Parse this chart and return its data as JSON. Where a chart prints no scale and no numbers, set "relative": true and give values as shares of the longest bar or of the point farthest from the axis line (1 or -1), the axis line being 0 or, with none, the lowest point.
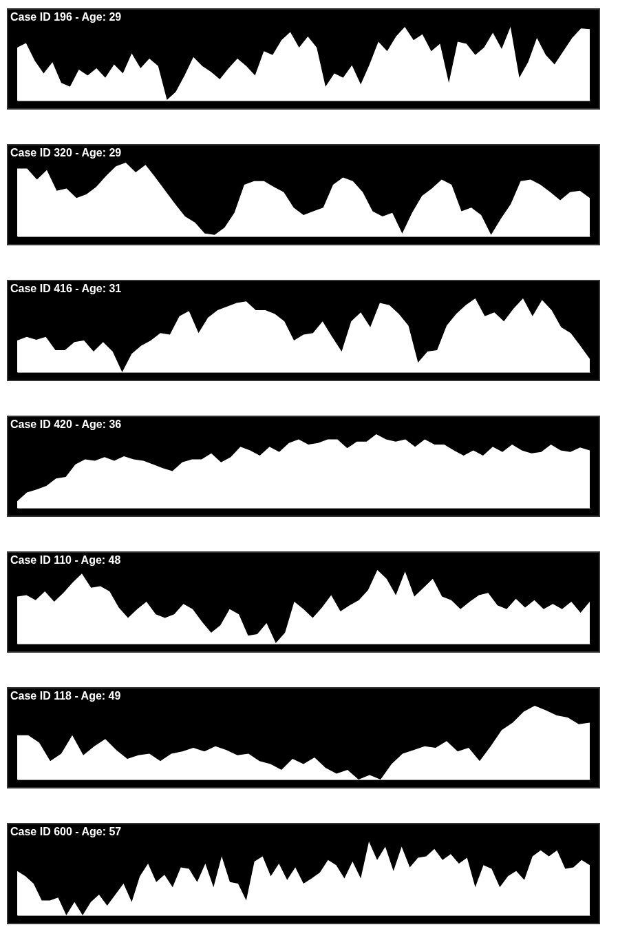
{
  "chart_data": [
    {
      "type": "area",
      "title": "Case ID 196 - Age: 29",
      "relative": true,
      "categories": [
        null,
        null,
        null,
        null,
        null,
        null,
        null,
        null,
        null,
        null,
        null,
        null,
        null,
        null,
        null,
        null,
        null,
        null,
        null,
        null,
        null,
        null,
        null,
        null,
        null,
        null,
        null,
        null,
        null,
        null,
        null,
        null,
        null,
        null,
        null,
        null,
        null,
        null,
        null,
        null,
        null,
        null,
        null,
        null,
        null,
        null,
        null,
        null,
        null,
        null,
        null,
        null,
        null,
        null,
        null,
        null,
        null,
        null,
        null,
        null,
        null,
        null,
        null,
        null,
        null,
        null
      ],
      "series": [
        {
          "color": "#ffffff",
          "values": [
            0.72,
            0.78,
            0.54,
            0.37,
            0.52,
            0.24,
            0.19,
            0.42,
            0.34,
            0.44,
            0.31,
            0.49,
            0.37,
            0.64,
            0.44,
            0.57,
            0.47,
            0.01,
            0.12,
            0.34,
            0.59,
            0.47,
            0.39,
            0.29,
            0.44,
            0.57,
            0.47,
            0.34,
            0.67,
            0.62,
            0.82,
            0.93,
            0.72,
            0.87,
            0.72,
            0.19,
            0.37,
            0.31,
            0.48,
            0.22,
            0.49,
            0.8,
            0.67,
            0.87,
            1,
            0.82,
            0.9,
            0.67,
            0.77,
            0.24,
            0.8,
            0.77,
            0.62,
            0.72,
            0.92,
            0.7,
            1,
            0.31,
            0.52,
            0.85,
            0.62,
            0.49,
            0.67,
            0.85,
            0.98,
            0.97
          ]
        }
      ]
    },
    {
      "type": "area",
      "title": "Case ID 320 - Age: 29",
      "relative": true,
      "categories": [
        null,
        null,
        null,
        null,
        null,
        null,
        null,
        null,
        null,
        null,
        null,
        null,
        null,
        null,
        null,
        null,
        null,
        null,
        null,
        null,
        null,
        null,
        null,
        null,
        null,
        null,
        null,
        null,
        null,
        null,
        null,
        null,
        null,
        null,
        null,
        null,
        null,
        null,
        null,
        null,
        null,
        null,
        null,
        null,
        null,
        null,
        null,
        null,
        null,
        null,
        null,
        null,
        null,
        null,
        null,
        null,
        null,
        null,
        null
      ],
      "series": [
        {
          "color": "#ffffff",
          "values": [
            0.92,
            0.92,
            0.77,
            0.9,
            0.62,
            0.65,
            0.52,
            0.57,
            0.67,
            0.82,
            0.95,
            1,
            0.87,
            0.97,
            0.8,
            0.62,
            0.44,
            0.27,
            0.19,
            0.04,
            0.02,
            0.12,
            0.32,
            0.7,
            0.75,
            0.75,
            0.67,
            0.6,
            0.39,
            0.29,
            0.34,
            0.39,
            0.7,
            0.8,
            0.75,
            0.6,
            0.34,
            0.27,
            0.32,
            0.04,
            0.32,
            0.55,
            0.65,
            0.77,
            0.7,
            0.34,
            0.39,
            0.29,
            0.02,
            0.24,
            0.44,
            0.75,
            0.77,
            0.7,
            0.6,
            0.49,
            0.6,
            0.62,
            0.52
          ]
        }
      ]
    },
    {
      "type": "area",
      "title": "Case ID 416 - Age: 31",
      "relative": true,
      "categories": [
        null,
        null,
        null,
        null,
        null,
        null,
        null,
        null,
        null,
        null,
        null,
        null,
        null,
        null,
        null,
        null,
        null,
        null,
        null,
        null,
        null,
        null,
        null,
        null,
        null,
        null,
        null,
        null,
        null,
        null,
        null,
        null,
        null,
        null,
        null,
        null,
        null,
        null,
        null,
        null,
        null,
        null,
        null,
        null,
        null,
        null,
        null,
        null,
        null,
        null,
        null,
        null,
        null,
        null,
        null,
        null,
        null,
        null,
        null,
        null,
        null
      ],
      "series": [
        {
          "color": "#ffffff",
          "values": [
            0.43,
            0.48,
            0.44,
            0.48,
            0.3,
            0.3,
            0.41,
            0.43,
            0.28,
            0.41,
            0.28,
            0,
            0.25,
            0.36,
            0.43,
            0.53,
            0.51,
            0.76,
            0.83,
            0.53,
            0.74,
            0.84,
            0.89,
            0.94,
            0.96,
            0.84,
            0.84,
            0.79,
            0.69,
            0.43,
            0.51,
            0.53,
            0.69,
            0.48,
            0.28,
            0.69,
            0.81,
            0.61,
            0.94,
            0.91,
            0.79,
            0.63,
            0.13,
            0.28,
            0.3,
            0.63,
            0.79,
            0.91,
            1,
            0.76,
            0.81,
            0.69,
            0.86,
            1,
            0.76,
            0.98,
            0.84,
            0.61,
            0.53,
            0.36,
            0.18
          ]
        }
      ]
    },
    {
      "type": "area",
      "title": "Case ID 420 - Age: 36",
      "relative": true,
      "categories": [
        null,
        null,
        null,
        null,
        null,
        null,
        null,
        null,
        null,
        null,
        null,
        null,
        null,
        null,
        null,
        null,
        null,
        null,
        null,
        null,
        null,
        null,
        null,
        null,
        null,
        null,
        null,
        null,
        null,
        null,
        null,
        null,
        null,
        null,
        null,
        null,
        null,
        null,
        null,
        null,
        null,
        null,
        null,
        null,
        null,
        null,
        null,
        null,
        null,
        null,
        null,
        null,
        null,
        null,
        null,
        null,
        null,
        null,
        null,
        null
      ],
      "series": [
        {
          "color": "#ffffff",
          "values": [
            0.09,
            0.21,
            0.25,
            0.3,
            0.4,
            0.42,
            0.59,
            0.66,
            0.64,
            0.69,
            0.64,
            0.7,
            0.66,
            0.64,
            0.59,
            0.54,
            0.5,
            0.62,
            0.66,
            0.66,
            0.74,
            0.62,
            0.69,
            0.83,
            0.78,
            0.71,
            0.83,
            0.76,
            0.88,
            0.93,
            0.86,
            0.88,
            0.93,
            0.93,
            0.81,
            0.9,
            0.9,
            1,
            0.93,
            0.9,
            0.93,
            0.83,
            0.93,
            0.86,
            0.86,
            0.78,
            0.71,
            0.78,
            0.71,
            0.83,
            0.76,
            0.86,
            0.78,
            0.74,
            0.76,
            0.86,
            0.78,
            0.76,
            0.82,
            0.78
          ]
        }
      ]
    },
    {
      "type": "area",
      "title": "Case ID 110 - Age: 48",
      "relative": true,
      "categories": [
        null,
        null,
        null,
        null,
        null,
        null,
        null,
        null,
        null,
        null,
        null,
        null,
        null,
        null,
        null,
        null,
        null,
        null,
        null,
        null,
        null,
        null,
        null,
        null,
        null,
        null,
        null,
        null,
        null,
        null,
        null,
        null,
        null,
        null,
        null,
        null,
        null,
        null,
        null,
        null,
        null,
        null,
        null,
        null,
        null,
        null,
        null,
        null,
        null,
        null,
        null,
        null,
        null,
        null,
        null,
        null,
        null,
        null,
        null,
        null,
        null,
        null,
        null
      ],
      "series": [
        {
          "color": "#ffffff",
          "values": [
            0.64,
            0.66,
            0.59,
            0.71,
            0.57,
            0.69,
            0.83,
            0.95,
            0.76,
            0.78,
            0.71,
            0.49,
            0.35,
            0.47,
            0.57,
            0.4,
            0.35,
            0.4,
            0.54,
            0.47,
            0.3,
            0.15,
            0.25,
            0.47,
            0.4,
            0.11,
            0.13,
            0.28,
            0.01,
            0.15,
            0.57,
            0.47,
            0.35,
            0.49,
            0.66,
            0.44,
            0.52,
            0.59,
            0.73,
            1,
            0.88,
            0.66,
            0.98,
            0.64,
            0.76,
            0.88,
            0.64,
            0.59,
            0.47,
            0.57,
            0.66,
            0.69,
            0.52,
            0.47,
            0.61,
            0.49,
            0.59,
            0.47,
            0.54,
            0.47,
            0.57,
            0.42,
            0.57
          ]
        }
      ]
    },
    {
      "type": "area",
      "title": "Case ID 118 - Age: 49",
      "relative": true,
      "categories": [
        null,
        null,
        null,
        null,
        null,
        null,
        null,
        null,
        null,
        null,
        null,
        null,
        null,
        null,
        null,
        null,
        null,
        null,
        null,
        null,
        null,
        null,
        null,
        null,
        null,
        null,
        null,
        null,
        null,
        null,
        null,
        null,
        null,
        null,
        null,
        null,
        null,
        null,
        null,
        null,
        null,
        null,
        null,
        null,
        null,
        null,
        null,
        null,
        null,
        null,
        null,
        null,
        null
      ],
      "series": [
        {
          "color": "#ffffff",
          "values": [
            0.6,
            0.6,
            0.5,
            0.25,
            0.35,
            0.6,
            0.33,
            0.45,
            0.55,
            0.4,
            0.28,
            0.33,
            0.35,
            0.25,
            0.35,
            0.38,
            0.43,
            0.38,
            0.45,
            0.4,
            0.33,
            0.35,
            0.25,
            0.21,
            0.13,
            0.28,
            0.21,
            0.3,
            0.16,
            0.08,
            0.13,
            0,
            0.06,
            0,
            0.21,
            0.35,
            0.4,
            0.45,
            0.43,
            0.52,
            0.38,
            0.43,
            0.25,
            0.45,
            0.67,
            0.77,
            0.92,
            1,
            0.94,
            0.87,
            0.84,
            0.75,
            0.77
          ]
        }
      ]
    },
    {
      "type": "area",
      "title": "Case ID 600 - Age: 57",
      "relative": true,
      "categories": [
        null,
        null,
        null,
        null,
        null,
        null,
        null,
        null,
        null,
        null,
        null,
        null,
        null,
        null,
        null,
        null,
        null,
        null,
        null,
        null,
        null,
        null,
        null,
        null,
        null,
        null,
        null,
        null,
        null,
        null,
        null,
        null,
        null,
        null,
        null,
        null,
        null,
        null,
        null,
        null,
        null,
        null,
        null,
        null,
        null,
        null,
        null,
        null,
        null,
        null,
        null,
        null,
        null,
        null,
        null,
        null,
        null,
        null,
        null,
        null,
        null,
        null,
        null,
        null,
        null,
        null,
        null,
        null,
        null,
        null,
        null
      ],
      "series": [
        {
          "color": "#ffffff",
          "values": [
            0.6,
            0.53,
            0.43,
            0.2,
            0.2,
            0.24,
            0,
            0.18,
            0,
            0.18,
            0.28,
            0.13,
            0.28,
            0.43,
            0.18,
            0.53,
            0.7,
            0.45,
            0.55,
            0.38,
            0.65,
            0.63,
            0.45,
            0.7,
            0.38,
            0.8,
            0.45,
            0.43,
            0.2,
            0.73,
            0.8,
            0.53,
            0.7,
            0.48,
            0.65,
            0.43,
            0.5,
            0.58,
            0.75,
            0.68,
            0.5,
            0.73,
            0.5,
            1,
            0.75,
            0.93,
            0.6,
            0.93,
            0.65,
            0.78,
            0.8,
            0.9,
            0.75,
            0.83,
            0.7,
            0.78,
            0.38,
            0.68,
            0.63,
            0.38,
            0.53,
            0.6,
            0.48,
            0.8,
            0.88,
            0.8,
            0.88,
            0.63,
            0.65,
            0.75,
            0.68
          ]
        }
      ]
    }
  ]
}
